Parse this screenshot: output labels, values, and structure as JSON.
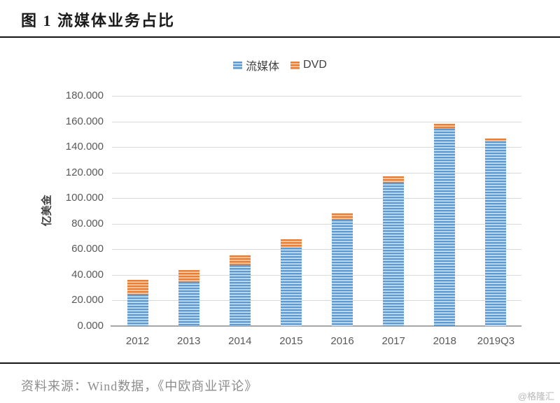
{
  "page": {
    "title": "图 1  流媒体业务占比",
    "source": "资料来源：Wind数据，《中欧商业评论》",
    "watermark": "@格隆汇"
  },
  "chart_data": {
    "type": "bar",
    "stacked": true,
    "categories": [
      "2012",
      "2013",
      "2014",
      "2015",
      "2016",
      "2017",
      "2018",
      "2019Q3"
    ],
    "series": [
      {
        "name": "流媒体",
        "color": "#5B9BD5",
        "stripe_color": "#d9e8f6",
        "values": [
          24.7,
          34.6,
          47.4,
          61.3,
          82.9,
          112.4,
          154.3,
          144.6
        ]
      },
      {
        "name": "DVD",
        "color": "#ED7D31",
        "stripe_color": "#f9d5ba",
        "values": [
          11.4,
          9.1,
          7.7,
          6.5,
          5.4,
          4.5,
          3.7,
          2.3
        ]
      }
    ],
    "ylabel": "亿美金",
    "ylim": [
      0,
      180
    ],
    "ytick_step": 20,
    "ytick_labels": [
      "0.000",
      "20.000",
      "40.000",
      "60.000",
      "80.000",
      "100.000",
      "120.000",
      "140.000",
      "160.000",
      "180.000"
    ],
    "grid": true,
    "legend_position": "top",
    "gridline_color": "#d9d9d9",
    "axis_line_color": "#a6a6a6",
    "tick_text_color": "#595959"
  }
}
